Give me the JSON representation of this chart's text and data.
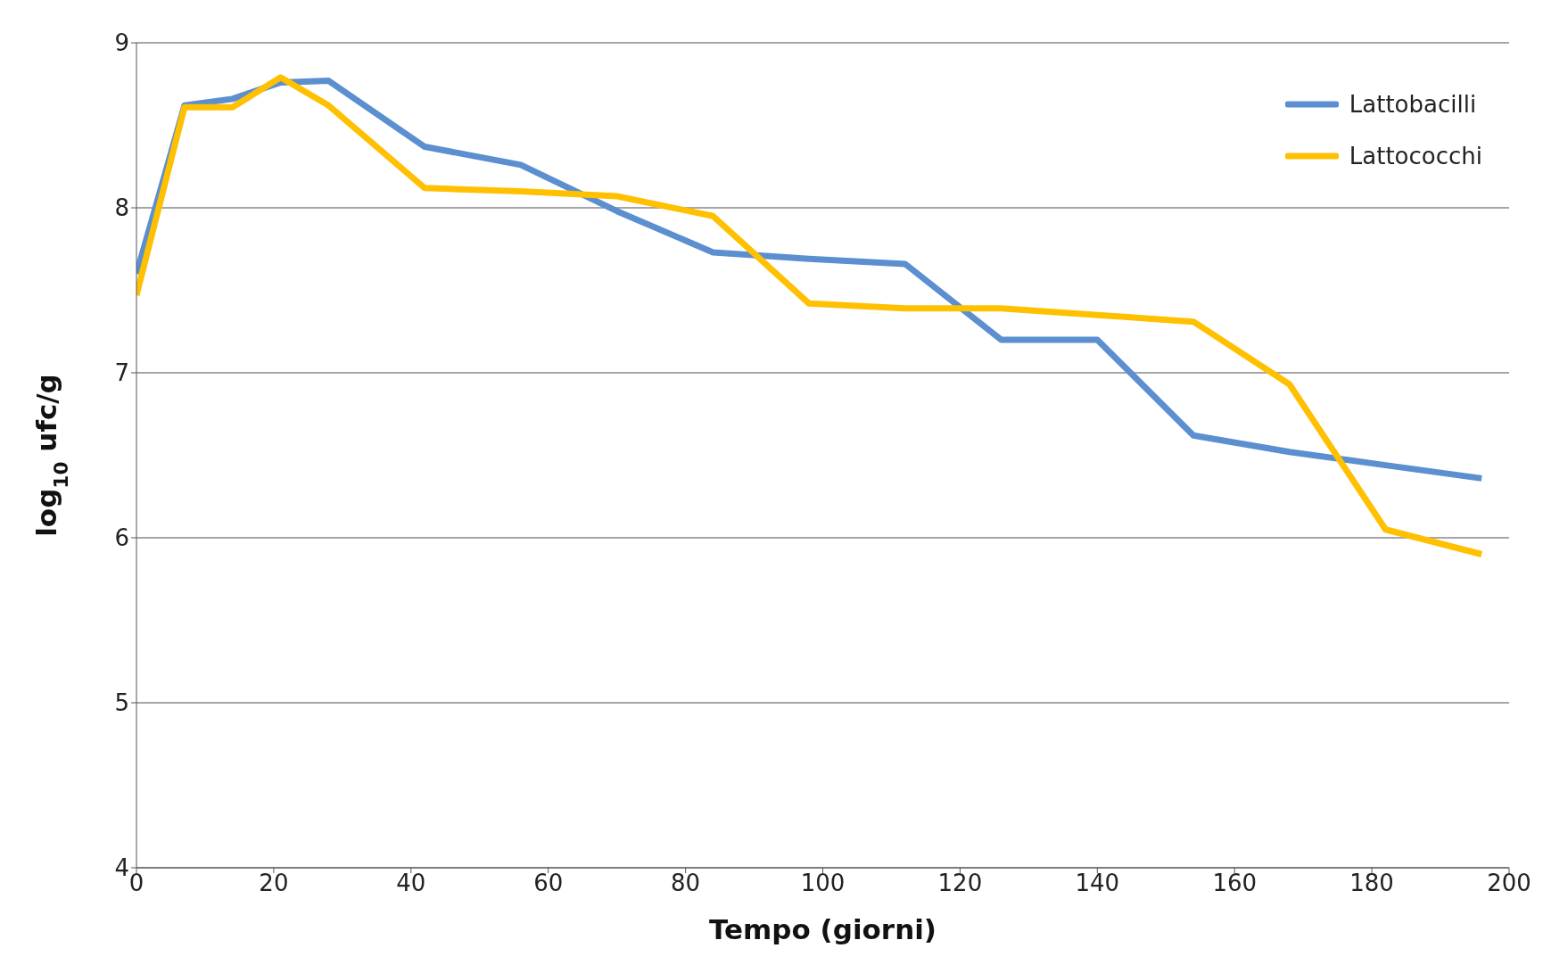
{
  "chart_data": {
    "type": "line",
    "xlabel": "Tempo (giorni)",
    "ylabel": "log$_{10}$ ufc/g",
    "x": [
      0,
      7,
      14,
      21,
      28,
      42,
      56,
      70,
      84,
      98,
      112,
      126,
      140,
      154,
      168,
      182,
      196
    ],
    "series": [
      {
        "name": "Lattobacilli",
        "color": "#5b8fd0",
        "values": [
          7.6,
          8.62,
          8.66,
          8.76,
          8.77,
          8.37,
          8.26,
          7.98,
          7.73,
          7.69,
          7.66,
          7.2,
          7.2,
          6.62,
          6.52,
          6.44,
          6.36
        ]
      },
      {
        "name": "Lattococchi",
        "color": "#ffc000",
        "values": [
          7.47,
          8.61,
          8.61,
          8.79,
          8.62,
          8.12,
          8.1,
          8.07,
          7.95,
          7.42,
          7.39,
          7.39,
          7.35,
          7.31,
          6.93,
          6.05,
          5.9
        ]
      }
    ],
    "xlim": [
      0,
      200
    ],
    "xticks": [
      0,
      20,
      40,
      60,
      80,
      100,
      120,
      140,
      160,
      180,
      200
    ],
    "ylim": [
      4,
      9
    ],
    "yticks": [
      4,
      5,
      6,
      7,
      8,
      9
    ],
    "grid": "y",
    "legend": "top right",
    "marker": "none",
    "line_style": "solid"
  }
}
